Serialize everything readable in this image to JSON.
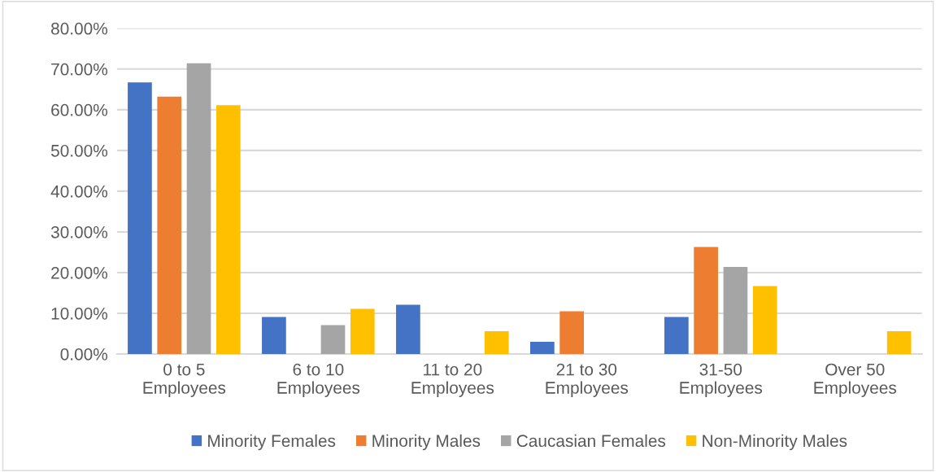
{
  "chart_data": {
    "type": "bar",
    "categories": [
      "0 to 5\nEmployees",
      "6 to 10\nEmployees",
      "11 to 20\nEmployees",
      "21 to 30\nEmployees",
      "31-50\nEmployees",
      "Over 50\nEmployees"
    ],
    "series": [
      {
        "name": "Minority Females",
        "color": "#4472c4",
        "values": [
          66.7,
          9.1,
          12.1,
          3.0,
          9.1,
          0
        ]
      },
      {
        "name": "Minority Males",
        "color": "#ed7d31",
        "values": [
          63.2,
          0,
          0,
          10.5,
          26.3,
          0
        ]
      },
      {
        "name": "Caucasian Females",
        "color": "#a5a5a5",
        "values": [
          71.4,
          7.1,
          0,
          0,
          21.4,
          0
        ]
      },
      {
        "name": "Non-Minority Males",
        "color": "#ffc000",
        "values": [
          61.1,
          11.1,
          5.6,
          0,
          16.7,
          5.6
        ]
      }
    ],
    "ylim": [
      0,
      80
    ],
    "yticks": [
      {
        "value": 0,
        "label": "0.00%"
      },
      {
        "value": 10,
        "label": "10.00%"
      },
      {
        "value": 20,
        "label": "20.00%"
      },
      {
        "value": 30,
        "label": "30.00%"
      },
      {
        "value": 40,
        "label": "40.00%"
      },
      {
        "value": 50,
        "label": "50.00%"
      },
      {
        "value": 60,
        "label": "60.00%"
      },
      {
        "value": 70,
        "label": "70.00%"
      },
      {
        "value": 80,
        "label": "80.00%"
      }
    ],
    "grid": "y",
    "legend": "bottom"
  }
}
